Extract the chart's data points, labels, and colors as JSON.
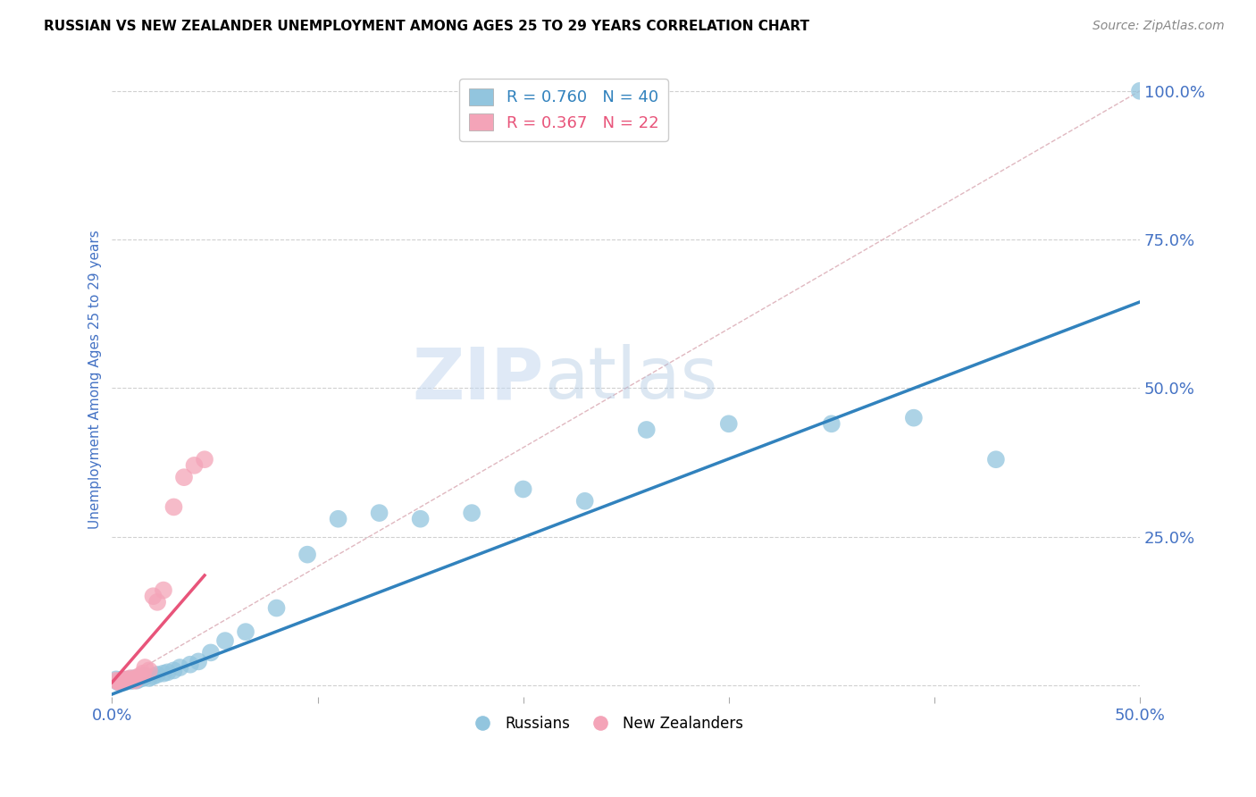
{
  "title": "RUSSIAN VS NEW ZEALANDER UNEMPLOYMENT AMONG AGES 25 TO 29 YEARS CORRELATION CHART",
  "source": "Source: ZipAtlas.com",
  "ylabel": "Unemployment Among Ages 25 to 29 years",
  "xlim": [
    0,
    0.5
  ],
  "ylim": [
    -0.02,
    1.05
  ],
  "xticks_major": [
    0.0,
    0.1,
    0.2,
    0.3,
    0.4,
    0.5
  ],
  "xticks_minor": [
    0.05,
    0.15,
    0.25,
    0.35,
    0.45
  ],
  "xtick_labels_show": {
    "0.0": "0.0%",
    "0.5": "50.0%"
  },
  "yticks": [
    0.0,
    0.25,
    0.5,
    0.75,
    1.0
  ],
  "ytick_labels": [
    "",
    "25.0%",
    "50.0%",
    "75.0%",
    "100.0%"
  ],
  "blue_color": "#92c5de",
  "pink_color": "#f4a4b8",
  "blue_line_color": "#3182bd",
  "pink_line_color": "#e8547a",
  "diag_line_color": "#e0b8c0",
  "axis_label_color": "#4472c4",
  "tick_color": "#4472c4",
  "grid_color": "#d0d0d0",
  "watermark_zip": "ZIP",
  "watermark_atlas": "atlas",
  "legend_blue_R": "R = 0.760",
  "legend_blue_N": "N = 40",
  "legend_pink_R": "R = 0.367",
  "legend_pink_N": "N = 22",
  "russians_x": [
    0.002,
    0.003,
    0.004,
    0.005,
    0.006,
    0.007,
    0.008,
    0.009,
    0.01,
    0.011,
    0.012,
    0.013,
    0.015,
    0.016,
    0.018,
    0.02,
    0.022,
    0.025,
    0.027,
    0.03,
    0.033,
    0.038,
    0.042,
    0.048,
    0.055,
    0.065,
    0.08,
    0.095,
    0.11,
    0.13,
    0.15,
    0.175,
    0.2,
    0.23,
    0.26,
    0.3,
    0.35,
    0.39,
    0.43,
    0.5
  ],
  "russians_y": [
    0.01,
    0.005,
    0.008,
    0.01,
    0.005,
    0.008,
    0.01,
    0.007,
    0.01,
    0.012,
    0.008,
    0.01,
    0.012,
    0.015,
    0.012,
    0.015,
    0.018,
    0.02,
    0.022,
    0.025,
    0.03,
    0.035,
    0.04,
    0.055,
    0.075,
    0.09,
    0.13,
    0.22,
    0.28,
    0.29,
    0.28,
    0.29,
    0.33,
    0.31,
    0.43,
    0.44,
    0.44,
    0.45,
    0.38,
    1.0
  ],
  "nz_x": [
    0.002,
    0.003,
    0.004,
    0.005,
    0.006,
    0.007,
    0.008,
    0.009,
    0.01,
    0.011,
    0.012,
    0.013,
    0.015,
    0.016,
    0.018,
    0.02,
    0.022,
    0.025,
    0.03,
    0.035,
    0.04,
    0.045
  ],
  "nz_y": [
    0.008,
    0.006,
    0.005,
    0.008,
    0.01,
    0.008,
    0.01,
    0.012,
    0.01,
    0.008,
    0.012,
    0.015,
    0.02,
    0.03,
    0.025,
    0.15,
    0.14,
    0.16,
    0.3,
    0.35,
    0.37,
    0.38
  ],
  "blue_trend_x0": 0.0,
  "blue_trend_y0": -0.015,
  "blue_trend_x1": 0.5,
  "blue_trend_y1": 0.645,
  "pink_trend_x0": 0.0,
  "pink_trend_y0": 0.005,
  "pink_trend_x1": 0.045,
  "pink_trend_y1": 0.185
}
